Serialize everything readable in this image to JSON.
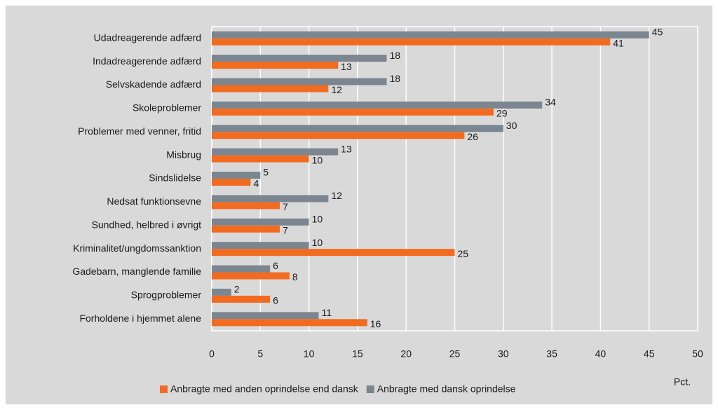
{
  "chart_data": {
    "type": "hbar",
    "xlabel": "Pct.",
    "categories": [
      "Udadreagerende adfærd",
      "Indadreagerende adfærd",
      "Selvskadende adfærd",
      "Skoleproblemer",
      "Problemer med venner, fritid",
      "Misbrug",
      "Sindslidelse",
      "Nedsat funktionsevne",
      "Sundhed, helbred i øvrigt",
      "Kriminalitet/ungdomssanktion",
      "Gadebarn, manglende familie",
      "Sprogproblemer",
      "Forholdene i hjemmet alene"
    ],
    "series": [
      {
        "name": "Anbragte med anden oprindelse end dansk",
        "color": "#f26b21",
        "values": [
          41,
          13,
          12,
          29,
          26,
          10,
          4,
          7,
          7,
          25,
          8,
          6,
          16
        ]
      },
      {
        "name": "Anbragte med dansk oprindelse",
        "color": "#7b8690",
        "values": [
          45,
          18,
          18,
          34,
          30,
          13,
          5,
          12,
          10,
          10,
          6,
          2,
          11
        ]
      }
    ],
    "xlim": [
      0,
      50
    ],
    "xticks": [
      0,
      5,
      10,
      15,
      20,
      25,
      30,
      35,
      40,
      45,
      50
    ],
    "grid": true
  }
}
